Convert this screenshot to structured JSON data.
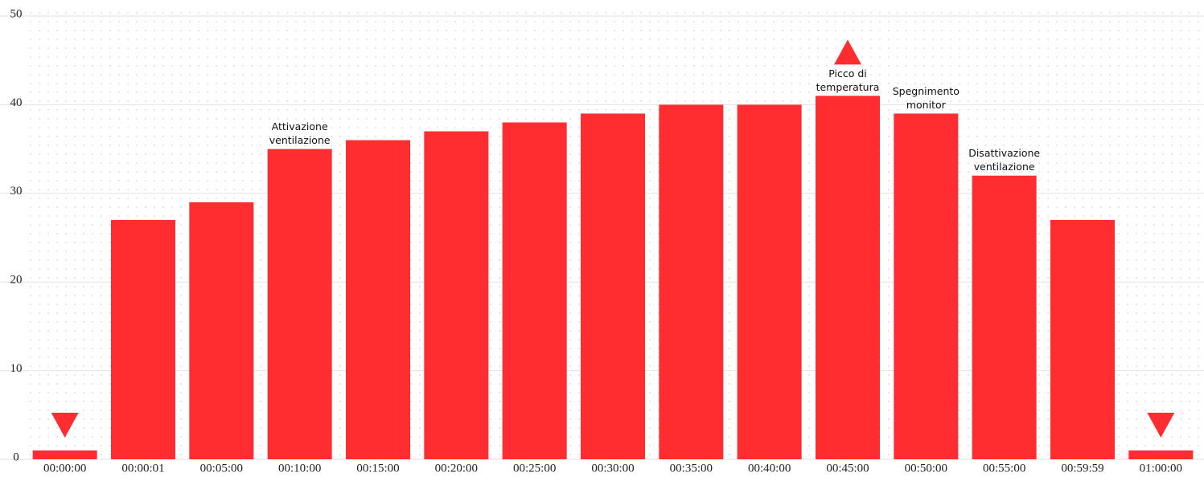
{
  "chart_data": {
    "type": "bar",
    "categories": [
      "00:00:00",
      "00:00:01",
      "00:05:00",
      "00:10:00",
      "00:15:00",
      "00:20:00",
      "00:25:00",
      "00:30:00",
      "00:35:00",
      "00:40:00",
      "00:45:00",
      "00:50:00",
      "00:55:00",
      "00:59:59",
      "01:00:00"
    ],
    "values": [
      1,
      27,
      29,
      35,
      36,
      37,
      38,
      39,
      40,
      40,
      41,
      39,
      32,
      27,
      1
    ],
    "color": "#ff2d30",
    "ylim": [
      0,
      50
    ],
    "yticks": [
      0,
      10,
      20,
      30,
      40,
      50
    ],
    "grid": true,
    "annotations": [
      {
        "category_index": 3,
        "lines": [
          "Attivazione",
          "ventilazione"
        ]
      },
      {
        "category_index": 10,
        "lines": [
          "Picco di",
          "temperatura"
        ]
      },
      {
        "category_index": 11,
        "lines": [
          "Spegnimento",
          "monitor"
        ]
      },
      {
        "category_index": 12,
        "lines": [
          "Disattivazione",
          "ventilazione"
        ]
      }
    ],
    "markers": [
      {
        "category_index": 0,
        "direction": "down"
      },
      {
        "category_index": 10,
        "direction": "up"
      },
      {
        "category_index": 14,
        "direction": "down"
      }
    ]
  }
}
